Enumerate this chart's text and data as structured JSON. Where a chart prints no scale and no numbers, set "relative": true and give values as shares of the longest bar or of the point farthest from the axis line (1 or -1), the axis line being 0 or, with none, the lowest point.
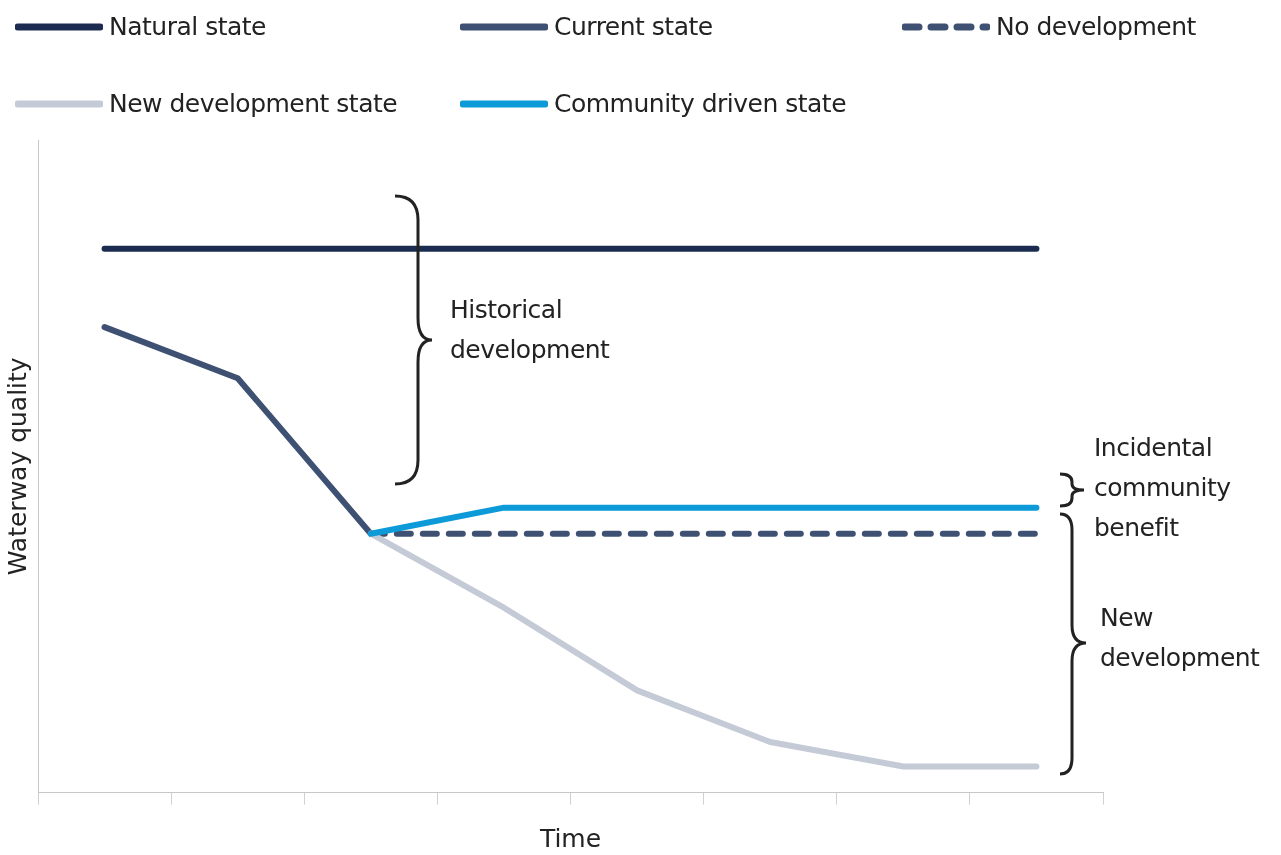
{
  "chart_data": {
    "type": "line",
    "relative": true,
    "xlabel": "Time",
    "ylabel": "Waterway quality",
    "categories": [
      null,
      null,
      null,
      null,
      null,
      null,
      null,
      null
    ],
    "legend": "top",
    "marker": "none",
    "series": [
      {
        "name": "Natural state",
        "color": "#1b2c50",
        "values": [
          1,
          1,
          1,
          1,
          1,
          1,
          1,
          1
        ]
      },
      {
        "name": "Current state",
        "color": "#3e5173",
        "values": [
          0.856,
          0.762,
          0.476,
          null,
          null,
          null,
          null,
          null
        ]
      },
      {
        "name": "No development",
        "color": "#3e5173",
        "line_style": "dashed",
        "values": [
          null,
          null,
          0.476,
          0.476,
          0.476,
          0.476,
          0.476,
          0.476
        ]
      },
      {
        "name": "New development state",
        "color": "#c4cad6",
        "values": [
          null,
          null,
          0.476,
          0.34,
          0.188,
          0.093,
          0.048,
          0.048
        ]
      },
      {
        "name": "Community driven state",
        "color": "#0c9bd8",
        "values": [
          null,
          null,
          0.476,
          0.524,
          0.524,
          0.524,
          0.524,
          0.524
        ]
      }
    ],
    "annotations": [
      "Historical development",
      "Incidental community benefit",
      "New development"
    ]
  }
}
